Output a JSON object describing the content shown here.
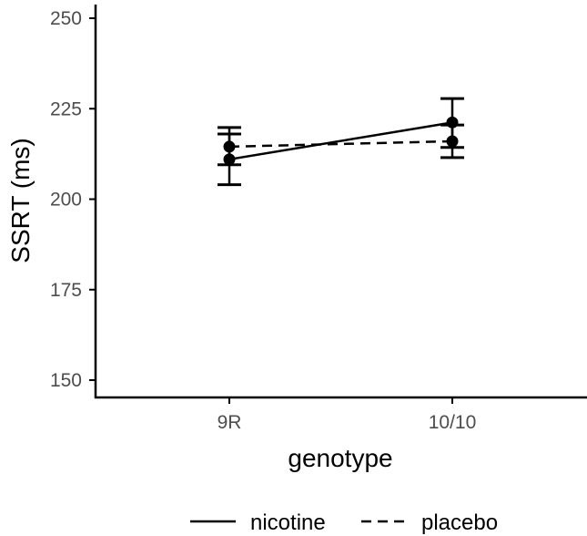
{
  "chart_data": {
    "type": "line",
    "xlabel": "genotype",
    "ylabel": "SSRT (ms)",
    "categories": [
      "9R",
      "10/10"
    ],
    "ylim": [
      145,
      255
    ],
    "yticks": [
      150,
      175,
      200,
      225,
      250
    ],
    "grid": false,
    "legend_position": "bottom",
    "series": [
      {
        "name": "nicotine",
        "line_style": "solid",
        "values": [
          211,
          221.2
        ],
        "error_low": [
          204,
          214.3
        ],
        "error_high": [
          218,
          227.8
        ]
      },
      {
        "name": "placebo",
        "line_style": "dashed",
        "values": [
          214.5,
          216
        ],
        "error_low": [
          209.5,
          211.5
        ],
        "error_high": [
          219.8,
          220.5
        ]
      }
    ],
    "colors": {
      "ink": "#000000",
      "tick_text": "#4d4d4d"
    }
  }
}
